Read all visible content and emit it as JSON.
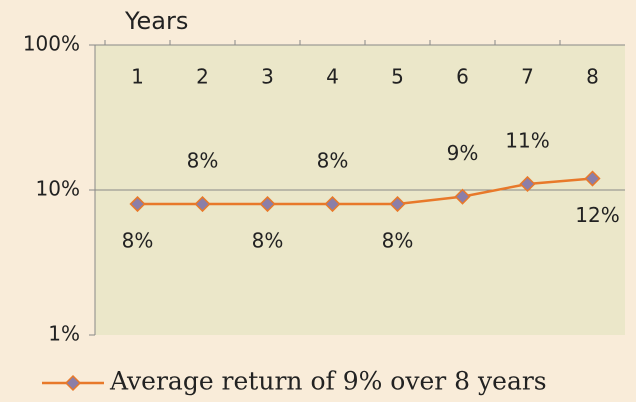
{
  "chart_data": {
    "type": "line",
    "title": "Years",
    "categories": [
      "1",
      "2",
      "3",
      "4",
      "5",
      "6",
      "7",
      "8"
    ],
    "series": [
      {
        "name": "Average return of 9% over 8 years",
        "color": "#e8792a",
        "values": [
          8,
          8,
          8,
          8,
          8,
          9,
          11,
          12
        ],
        "value_labels": [
          "8%",
          "8%",
          "8%",
          "8%",
          "8%",
          "9%",
          "11%",
          "12%"
        ]
      }
    ],
    "log_scale": true,
    "ylim": [
      1,
      100
    ],
    "yticks": [
      {
        "value": 1,
        "label": "1%"
      },
      {
        "value": 10,
        "label": "10%"
      },
      {
        "value": 100,
        "label": "100%"
      }
    ],
    "grid": true,
    "legend": "bottom"
  }
}
